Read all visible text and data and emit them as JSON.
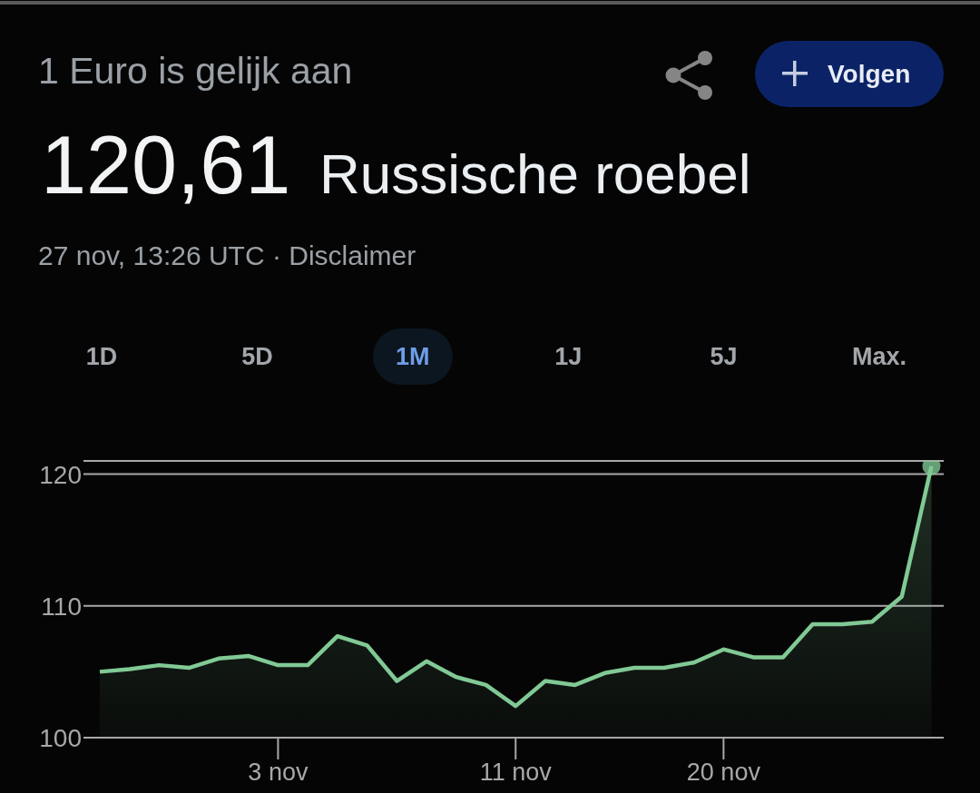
{
  "chart_data": {
    "type": "area",
    "title": "1 Euro is gelijk aan",
    "subtitle": "27 nov, 13:26 UTC · Disclaimer",
    "annotations": [
      "120,61",
      "Russische roebel",
      "Volgen",
      "1D",
      "5D",
      "1M",
      "1J",
      "5J",
      "Max."
    ],
    "categories": [
      null,
      null,
      null,
      null,
      null,
      null,
      "3 nov",
      null,
      null,
      null,
      null,
      null,
      null,
      null,
      "11 nov",
      null,
      null,
      null,
      null,
      null,
      null,
      "20 nov",
      null,
      null,
      null,
      null,
      null,
      null,
      null
    ],
    "series": [
      {
        "color": "#81c995",
        "values": [
          105.0,
          105.2,
          105.5,
          105.3,
          106.0,
          106.2,
          105.5,
          105.5,
          107.7,
          107.0,
          104.3,
          105.8,
          104.6,
          104.0,
          102.4,
          104.3,
          104.0,
          104.9,
          105.3,
          105.3,
          105.7,
          106.7,
          106.1,
          106.1,
          108.6,
          108.6,
          108.8,
          110.7,
          120.61
        ]
      }
    ],
    "ylim": [
      100,
      121
    ],
    "yticks": [
      100,
      110,
      120
    ],
    "grid": "y"
  }
}
